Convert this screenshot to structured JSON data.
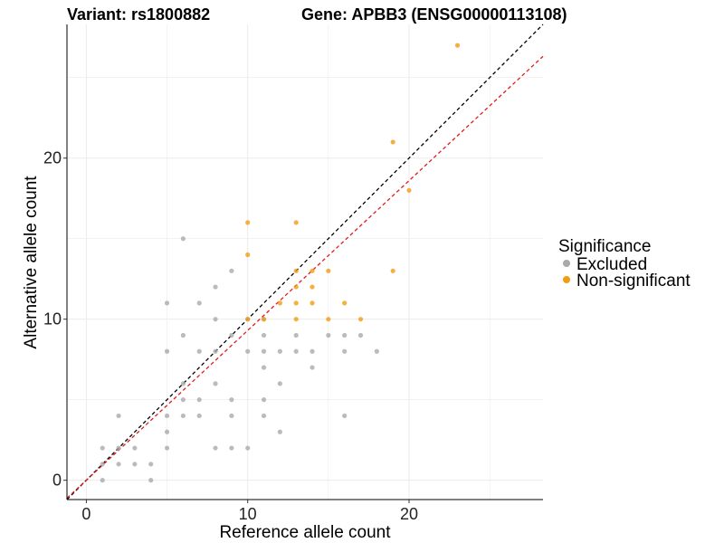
{
  "chart_data": {
    "type": "scatter",
    "title_left": "Variant: rs1800882",
    "title_right": "Gene: APBB3 (ENSG00000113108)",
    "xlabel": "Reference allele count",
    "ylabel": "Alternative allele count",
    "xlim": [
      -1.2,
      28.3
    ],
    "ylim": [
      -1.2,
      28.3
    ],
    "xticks": [
      0,
      10,
      20
    ],
    "yticks": [
      0,
      10,
      20
    ],
    "grid": true,
    "legend_title": "Significance",
    "legend_position": "right",
    "colors": {
      "Excluded": "#aaaaaa",
      "Non-significant": "#f39c12",
      "identity_line": "#000000",
      "fit_line": "#e31a1c",
      "grid": "#ebebeb"
    },
    "reference_lines": [
      {
        "name": "identity",
        "slope": 1.0,
        "intercept": 0.0
      },
      {
        "name": "fit",
        "slope": 0.93,
        "intercept": 0.0
      }
    ],
    "series": [
      {
        "name": "Excluded",
        "points": [
          [
            1,
            0
          ],
          [
            1,
            1
          ],
          [
            1,
            2
          ],
          [
            2,
            1
          ],
          [
            2,
            2
          ],
          [
            2,
            4
          ],
          [
            3,
            1
          ],
          [
            3,
            2
          ],
          [
            4,
            0
          ],
          [
            4,
            1
          ],
          [
            5,
            2
          ],
          [
            5,
            3
          ],
          [
            5,
            4
          ],
          [
            5,
            8
          ],
          [
            5,
            11
          ],
          [
            6,
            4
          ],
          [
            6,
            5
          ],
          [
            6,
            6
          ],
          [
            6,
            9
          ],
          [
            6,
            15
          ],
          [
            7,
            4
          ],
          [
            7,
            5
          ],
          [
            7,
            8
          ],
          [
            7,
            11
          ],
          [
            8,
            2
          ],
          [
            8,
            6
          ],
          [
            8,
            8
          ],
          [
            8,
            10
          ],
          [
            8,
            12
          ],
          [
            9,
            2
          ],
          [
            9,
            4
          ],
          [
            9,
            5
          ],
          [
            9,
            9
          ],
          [
            9,
            13
          ],
          [
            10,
            2
          ],
          [
            10,
            8
          ],
          [
            10,
            10
          ],
          [
            11,
            4
          ],
          [
            11,
            5
          ],
          [
            11,
            7
          ],
          [
            11,
            8
          ],
          [
            11,
            9
          ],
          [
            11,
            10
          ],
          [
            12,
            3
          ],
          [
            12,
            6
          ],
          [
            12,
            8
          ],
          [
            13,
            8
          ],
          [
            13,
            9
          ],
          [
            14,
            7
          ],
          [
            14,
            8
          ],
          [
            15,
            9
          ],
          [
            16,
            4
          ],
          [
            16,
            8
          ],
          [
            16,
            9
          ],
          [
            17,
            9
          ],
          [
            18,
            8
          ]
        ]
      },
      {
        "name": "Non-significant",
        "points": [
          [
            10,
            10
          ],
          [
            10,
            14
          ],
          [
            10,
            16
          ],
          [
            11,
            10
          ],
          [
            12,
            11
          ],
          [
            13,
            10
          ],
          [
            13,
            11
          ],
          [
            13,
            12
          ],
          [
            13,
            13
          ],
          [
            13,
            16
          ],
          [
            14,
            11
          ],
          [
            14,
            12
          ],
          [
            14,
            13
          ],
          [
            15,
            10
          ],
          [
            15,
            13
          ],
          [
            16,
            11
          ],
          [
            17,
            10
          ],
          [
            19,
            13
          ],
          [
            19,
            21
          ],
          [
            20,
            18
          ],
          [
            23,
            27
          ]
        ]
      }
    ]
  }
}
